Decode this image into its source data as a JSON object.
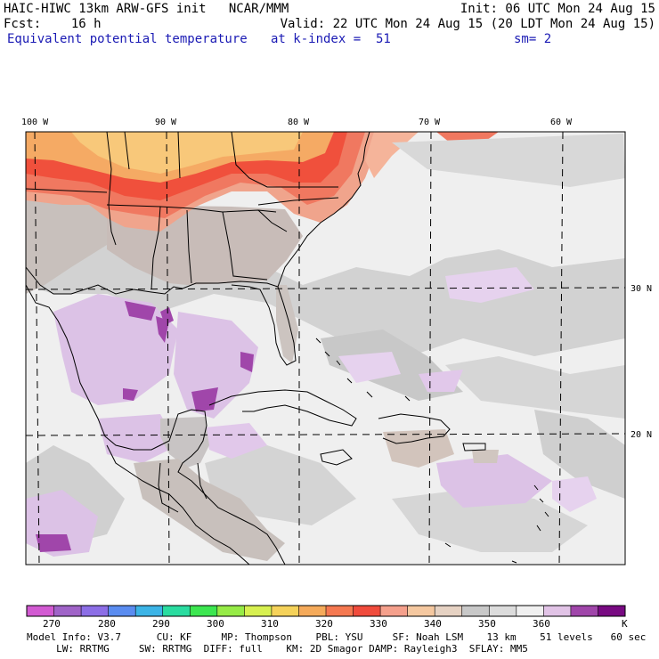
{
  "header": {
    "model_line": "HAIC-HIWC 13km ARW-GFS init   NCAR/MMM",
    "init": "Init: 06 UTC Mon 24 Aug 15",
    "fcst": "Fcst:    16 h",
    "valid": "Valid: 22 UTC Mon 24 Aug 15 (20 LDT Mon 24 Aug 15)",
    "field": "Equivalent potential temperature",
    "level": "at k-index =  51",
    "smooth": "sm= 2"
  },
  "map": {
    "lon_labels": [
      "100 W",
      "90 W",
      "80 W",
      "70 W",
      "60 W"
    ],
    "lat_labels": [
      "30 N",
      "20 N"
    ]
  },
  "colorbar": {
    "unit": "K",
    "tick_labels": [
      "270",
      "280",
      "290",
      "300",
      "310",
      "320",
      "330",
      "340",
      "350",
      "360"
    ],
    "colors": [
      "#d25ad2",
      "#a064c8",
      "#8c6ee6",
      "#5a8cf0",
      "#3cb4e6",
      "#2adca0",
      "#3ce650",
      "#96eb46",
      "#d7f050",
      "#f5d25a",
      "#f5aa5a",
      "#f57850",
      "#f04b3c",
      "#f5a08c",
      "#f5c8a0",
      "#e6d2c3",
      "#c8c8c8",
      "#dcdcdc",
      "#f0f0f0",
      "#e1c3e6",
      "#a046aa",
      "#780a82"
    ]
  },
  "footer": {
    "line1": "Model Info: V3.7      CU: KF     MP: Thompson    PBL: YSU     SF: Noah LSM    13 km    51 levels   60 sec",
    "line2": "     LW: RRTMG     SW: RRTMG  DIFF: full    KM: 2D Smagor DAMP: Rayleigh3  SFLAY: MM5"
  }
}
